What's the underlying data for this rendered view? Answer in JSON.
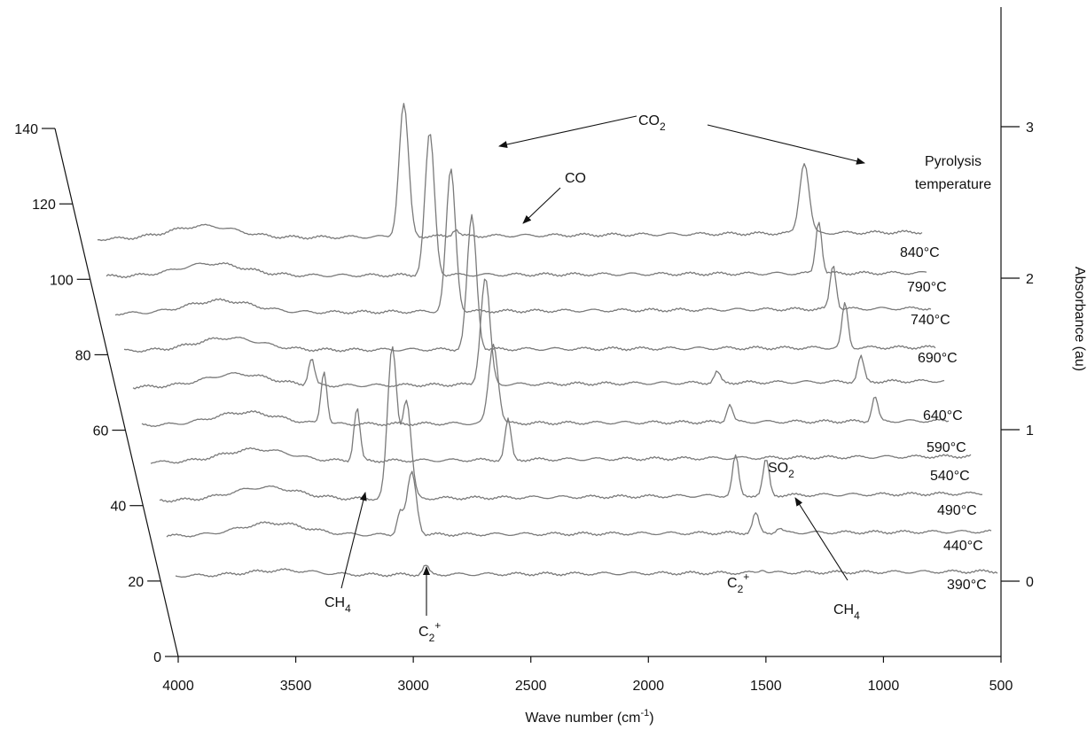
{
  "chart_data": {
    "type": "line",
    "subtype": "stacked-3d-spectra",
    "xlabel": "Wave number (cm⁻¹)",
    "ylabel_right": "Absorbance (au)",
    "xlim": [
      4000,
      500
    ],
    "x_ticks": [
      4000,
      3500,
      3000,
      2500,
      2000,
      1500,
      1000,
      500
    ],
    "depth_ticks": [
      0,
      20,
      40,
      60,
      80,
      100,
      120,
      140
    ],
    "right_ticks": [
      0,
      1,
      2,
      3
    ],
    "legend_title": [
      "Pyrolysis",
      "temperature"
    ],
    "series": [
      {
        "name": "390°C",
        "peaks": [
          {
            "x": 2935,
            "h": 10
          },
          {
            "x": 1500,
            "h": 4
          }
        ]
      },
      {
        "name": "440°C",
        "peaks": [
          {
            "x": 2960,
            "h": 70
          },
          {
            "x": 3010,
            "h": 25
          },
          {
            "x": 1500,
            "h": 22
          },
          {
            "x": 1400,
            "h": 5
          }
        ]
      },
      {
        "name": "490°C",
        "peaks": [
          {
            "x": 3010,
            "h": 170
          },
          {
            "x": 2950,
            "h": 110
          },
          {
            "x": 1550,
            "h": 45
          },
          {
            "x": 1420,
            "h": 40
          }
        ]
      },
      {
        "name": "540°C",
        "peaks": [
          {
            "x": 3120,
            "h": 60
          },
          {
            "x": 2475,
            "h": 45
          }
        ]
      },
      {
        "name": "590°C",
        "peaks": [
          {
            "x": 3210,
            "h": 60
          },
          {
            "x": 2475,
            "h": 90
          },
          {
            "x": 1450,
            "h": 20
          },
          {
            "x": 820,
            "h": 28
          }
        ]
      },
      {
        "name": "640°C",
        "peaks": [
          {
            "x": 3230,
            "h": 30
          },
          {
            "x": 2480,
            "h": 120
          },
          {
            "x": 1480,
            "h": 12
          },
          {
            "x": 860,
            "h": 28
          }
        ]
      },
      {
        "name": "690°C",
        "peaks": [
          {
            "x": 2500,
            "h": 150
          },
          {
            "x": 890,
            "h": 50
          }
        ]
      },
      {
        "name": "740°C",
        "peaks": [
          {
            "x": 2560,
            "h": 160
          },
          {
            "x": 920,
            "h": 50
          }
        ]
      },
      {
        "name": "790°C",
        "peaks": [
          {
            "x": 2620,
            "h": 160
          },
          {
            "x": 960,
            "h": 60
          }
        ]
      },
      {
        "name": "840°C",
        "peaks": [
          {
            "x": 2700,
            "h": 150
          },
          {
            "x": 2480,
            "h": 8
          },
          {
            "x": 1000,
            "h": 80
          }
        ]
      }
    ],
    "annotations": [
      {
        "key": "co2",
        "text": "CO",
        "sub": "2"
      },
      {
        "key": "co",
        "text": "CO",
        "sub": ""
      },
      {
        "key": "so2",
        "text": "SO",
        "sub": "2"
      },
      {
        "key": "ch4_left",
        "text": "CH",
        "sub": "4"
      },
      {
        "key": "ch4_right",
        "text": "CH",
        "sub": "4"
      },
      {
        "key": "c2_mid",
        "text": "C",
        "sub": "2",
        "sup": "+"
      },
      {
        "key": "c2_bottom",
        "text": "C",
        "sub": "2",
        "sup": "+"
      }
    ],
    "grid": false
  }
}
